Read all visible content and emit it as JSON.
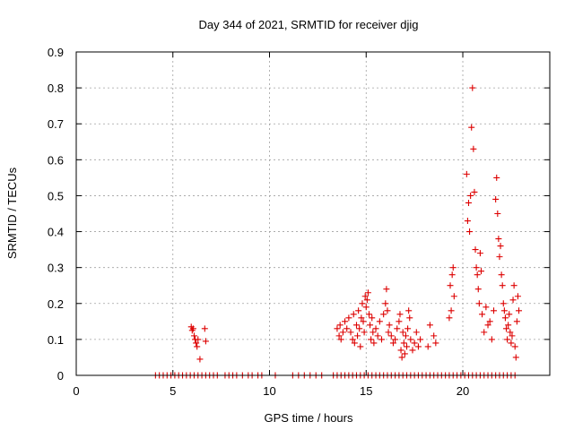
{
  "chart_data": {
    "type": "scatter",
    "title": "Day 344 of 2021, SRMTID for receiver djig",
    "xlabel": "GPS time / hours",
    "ylabel": "SRMTID / TECUs",
    "xlim": [
      0,
      24.5
    ],
    "ylim": [
      0,
      0.9
    ],
    "xticks": [
      0,
      5,
      10,
      15,
      20
    ],
    "xtick_labels": [
      "0",
      "5",
      "10",
      "15",
      "20"
    ],
    "yticks": [
      0,
      0.1,
      0.2,
      0.3,
      0.4,
      0.5,
      0.6,
      0.7,
      0.8,
      0.9
    ],
    "ytick_labels": [
      "0",
      "0.1",
      "0.2",
      "0.3",
      "0.4",
      "0.5",
      "0.6",
      "0.7",
      "0.8",
      "0.9"
    ],
    "grid": true,
    "marker": "+",
    "marker_color": "#dd0000",
    "series": [
      {
        "name": "SRMTID",
        "points": [
          [
            4.1,
            0
          ],
          [
            4.3,
            0
          ],
          [
            4.5,
            0
          ],
          [
            4.7,
            0
          ],
          [
            4.9,
            0
          ],
          [
            5.1,
            0
          ],
          [
            5.3,
            0
          ],
          [
            5.5,
            0
          ],
          [
            5.7,
            0
          ],
          [
            5.9,
            0
          ],
          [
            6.1,
            0
          ],
          [
            6.3,
            0
          ],
          [
            6.5,
            0
          ],
          [
            6.7,
            0
          ],
          [
            6.9,
            0
          ],
          [
            7.1,
            0
          ],
          [
            7.3,
            0
          ],
          [
            7.7,
            0
          ],
          [
            7.9,
            0
          ],
          [
            8.1,
            0
          ],
          [
            8.3,
            0
          ],
          [
            8.6,
            0
          ],
          [
            8.9,
            0
          ],
          [
            9.1,
            0
          ],
          [
            9.4,
            0
          ],
          [
            9.6,
            0
          ],
          [
            10.3,
            0
          ],
          [
            11.2,
            0
          ],
          [
            11.5,
            0
          ],
          [
            11.8,
            0
          ],
          [
            12.1,
            0
          ],
          [
            12.4,
            0
          ],
          [
            12.7,
            0
          ],
          [
            13.3,
            0
          ],
          [
            13.5,
            0
          ],
          [
            13.7,
            0
          ],
          [
            13.9,
            0
          ],
          [
            14.1,
            0
          ],
          [
            14.3,
            0
          ],
          [
            14.5,
            0
          ],
          [
            14.7,
            0
          ],
          [
            14.9,
            0
          ],
          [
            15.1,
            0
          ],
          [
            15.3,
            0
          ],
          [
            15.5,
            0
          ],
          [
            15.7,
            0
          ],
          [
            15.9,
            0
          ],
          [
            16.1,
            0
          ],
          [
            16.3,
            0
          ],
          [
            16.5,
            0
          ],
          [
            16.7,
            0
          ],
          [
            16.9,
            0
          ],
          [
            17.1,
            0
          ],
          [
            17.3,
            0
          ],
          [
            17.5,
            0
          ],
          [
            17.7,
            0
          ],
          [
            17.9,
            0
          ],
          [
            18.1,
            0
          ],
          [
            18.3,
            0
          ],
          [
            18.5,
            0
          ],
          [
            18.7,
            0
          ],
          [
            18.9,
            0
          ],
          [
            19.1,
            0
          ],
          [
            19.3,
            0
          ],
          [
            19.5,
            0
          ],
          [
            19.7,
            0
          ],
          [
            19.9,
            0
          ],
          [
            20.1,
            0
          ],
          [
            20.3,
            0
          ],
          [
            20.5,
            0
          ],
          [
            20.7,
            0
          ],
          [
            20.9,
            0
          ],
          [
            21.1,
            0
          ],
          [
            21.3,
            0
          ],
          [
            21.5,
            0
          ],
          [
            21.7,
            0
          ],
          [
            21.9,
            0
          ],
          [
            22.1,
            0
          ],
          [
            22.3,
            0
          ],
          [
            22.5,
            0
          ],
          [
            22.7,
            0
          ],
          [
            5.95,
            0.135
          ],
          [
            6.0,
            0.125
          ],
          [
            6.05,
            0.13
          ],
          [
            6.1,
            0.11
          ],
          [
            6.15,
            0.1
          ],
          [
            6.2,
            0.09
          ],
          [
            6.25,
            0.08
          ],
          [
            6.3,
            0.1
          ],
          [
            6.4,
            0.045
          ],
          [
            6.65,
            0.13
          ],
          [
            6.7,
            0.095
          ],
          [
            13.5,
            0.13
          ],
          [
            13.6,
            0.11
          ],
          [
            13.65,
            0.14
          ],
          [
            13.7,
            0.1
          ],
          [
            13.8,
            0.12
          ],
          [
            13.9,
            0.15
          ],
          [
            14.0,
            0.13
          ],
          [
            14.1,
            0.16
          ],
          [
            14.2,
            0.12
          ],
          [
            14.3,
            0.1
          ],
          [
            14.35,
            0.17
          ],
          [
            14.4,
            0.09
          ],
          [
            14.5,
            0.14
          ],
          [
            14.55,
            0.11
          ],
          [
            14.6,
            0.18
          ],
          [
            14.65,
            0.13
          ],
          [
            14.7,
            0.08
          ],
          [
            14.75,
            0.16
          ],
          [
            14.8,
            0.2
          ],
          [
            14.85,
            0.15
          ],
          [
            14.9,
            0.12
          ],
          [
            14.95,
            0.22
          ],
          [
            15.0,
            0.19
          ],
          [
            15.05,
            0.21
          ],
          [
            15.1,
            0.23
          ],
          [
            15.15,
            0.17
          ],
          [
            15.2,
            0.14
          ],
          [
            15.25,
            0.1
          ],
          [
            15.3,
            0.16
          ],
          [
            15.35,
            0.12
          ],
          [
            15.4,
            0.09
          ],
          [
            15.5,
            0.13
          ],
          [
            15.6,
            0.11
          ],
          [
            15.7,
            0.15
          ],
          [
            15.8,
            0.1
          ],
          [
            15.9,
            0.17
          ],
          [
            16.0,
            0.2
          ],
          [
            16.05,
            0.24
          ],
          [
            16.1,
            0.18
          ],
          [
            16.15,
            0.12
          ],
          [
            16.2,
            0.14
          ],
          [
            16.3,
            0.11
          ],
          [
            16.4,
            0.09
          ],
          [
            16.5,
            0.1
          ],
          [
            16.6,
            0.13
          ],
          [
            16.7,
            0.15
          ],
          [
            16.75,
            0.17
          ],
          [
            16.8,
            0.07
          ],
          [
            16.85,
            0.05
          ],
          [
            16.9,
            0.12
          ],
          [
            16.95,
            0.09
          ],
          [
            17.0,
            0.06
          ],
          [
            17.05,
            0.11
          ],
          [
            17.1,
            0.08
          ],
          [
            17.15,
            0.13
          ],
          [
            17.2,
            0.18
          ],
          [
            17.25,
            0.16
          ],
          [
            17.3,
            0.1
          ],
          [
            17.4,
            0.07
          ],
          [
            17.5,
            0.09
          ],
          [
            17.6,
            0.12
          ],
          [
            17.7,
            0.08
          ],
          [
            17.8,
            0.1
          ],
          [
            18.2,
            0.08
          ],
          [
            18.3,
            0.14
          ],
          [
            18.5,
            0.11
          ],
          [
            18.6,
            0.09
          ],
          [
            19.3,
            0.16
          ],
          [
            19.35,
            0.25
          ],
          [
            19.4,
            0.18
          ],
          [
            19.45,
            0.28
          ],
          [
            19.5,
            0.3
          ],
          [
            19.55,
            0.22
          ],
          [
            20.2,
            0.56
          ],
          [
            20.25,
            0.43
          ],
          [
            20.3,
            0.48
          ],
          [
            20.35,
            0.4
          ],
          [
            20.4,
            0.5
          ],
          [
            20.45,
            0.69
          ],
          [
            20.5,
            0.8
          ],
          [
            20.55,
            0.63
          ],
          [
            20.6,
            0.51
          ],
          [
            20.65,
            0.35
          ],
          [
            20.7,
            0.3
          ],
          [
            20.75,
            0.28
          ],
          [
            20.8,
            0.24
          ],
          [
            20.85,
            0.2
          ],
          [
            20.9,
            0.34
          ],
          [
            20.95,
            0.29
          ],
          [
            21.0,
            0.17
          ],
          [
            21.1,
            0.12
          ],
          [
            21.2,
            0.19
          ],
          [
            21.3,
            0.14
          ],
          [
            21.4,
            0.15
          ],
          [
            21.5,
            0.1
          ],
          [
            21.6,
            0.18
          ],
          [
            21.7,
            0.49
          ],
          [
            21.75,
            0.55
          ],
          [
            21.8,
            0.45
          ],
          [
            21.85,
            0.38
          ],
          [
            21.9,
            0.33
          ],
          [
            21.95,
            0.36
          ],
          [
            22.0,
            0.28
          ],
          [
            22.05,
            0.25
          ],
          [
            22.1,
            0.2
          ],
          [
            22.15,
            0.18
          ],
          [
            22.2,
            0.16
          ],
          [
            22.25,
            0.13
          ],
          [
            22.3,
            0.1
          ],
          [
            22.35,
            0.14
          ],
          [
            22.4,
            0.17
          ],
          [
            22.45,
            0.12
          ],
          [
            22.5,
            0.09
          ],
          [
            22.55,
            0.11
          ],
          [
            22.6,
            0.21
          ],
          [
            22.65,
            0.25
          ],
          [
            22.7,
            0.08
          ],
          [
            22.75,
            0.05
          ],
          [
            22.8,
            0.15
          ],
          [
            22.85,
            0.22
          ],
          [
            22.9,
            0.18
          ]
        ]
      }
    ]
  }
}
